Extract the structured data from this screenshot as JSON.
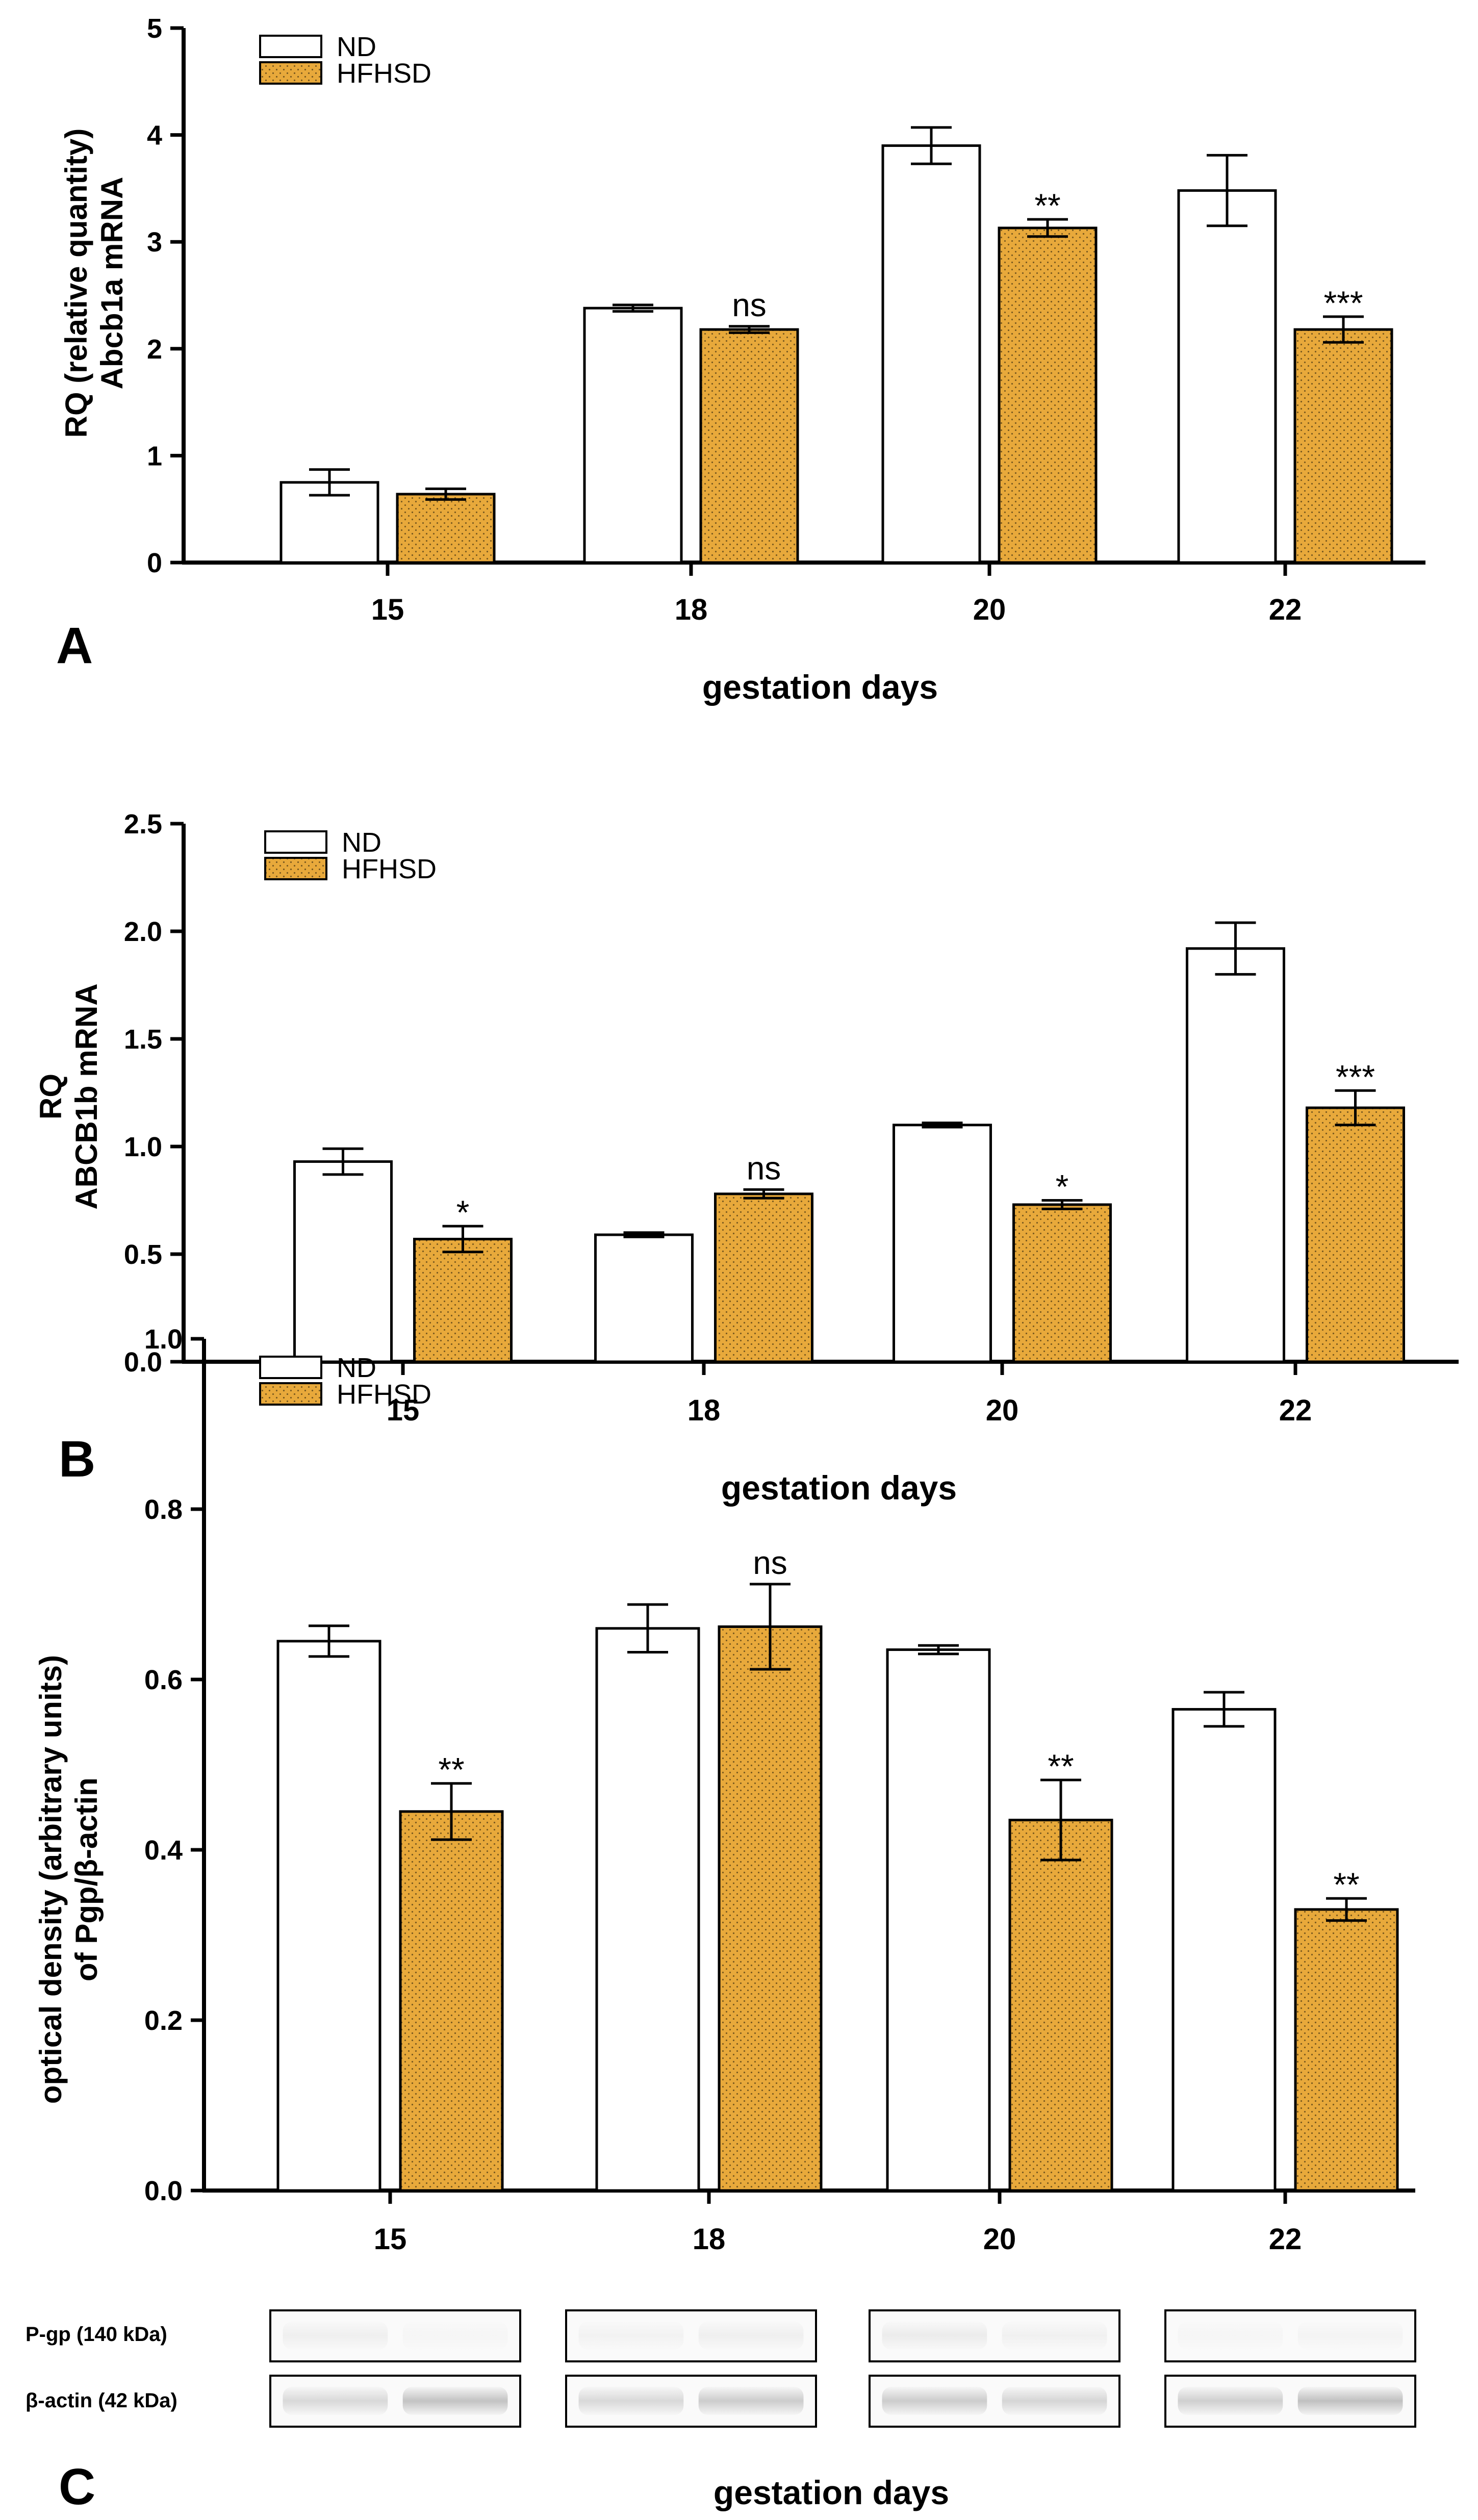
{
  "colors": {
    "nd_fill": "#ffffff",
    "hfhsd_fill": "#e8a93b",
    "hfhsd_dots": "#7a5a1f",
    "axis": "#000000"
  },
  "shared": {
    "xlabel": "gestation days"
  },
  "chart_data": [
    {
      "type": "bar",
      "panel": "A",
      "ylabel_line1": "RQ (relative quantity)",
      "ylabel_line2": "Abcb1a mRNA",
      "xlabel": "gestation days",
      "categories": [
        "15",
        "18",
        "20",
        "22"
      ],
      "ylim": [
        0,
        5
      ],
      "yticks": [
        "0",
        "1",
        "2",
        "3",
        "4",
        "5"
      ],
      "legend": [
        "ND",
        "HFHSD"
      ],
      "series": [
        {
          "name": "ND",
          "values": [
            0.75,
            2.38,
            3.9,
            3.48
          ],
          "errors": [
            0.12,
            0.03,
            0.17,
            0.33
          ]
        },
        {
          "name": "HFHSD",
          "values": [
            0.64,
            2.18,
            3.13,
            2.18
          ],
          "errors": [
            0.05,
            0.03,
            0.08,
            0.12
          ]
        }
      ],
      "annotations": [
        "",
        "ns",
        "**",
        "***"
      ]
    },
    {
      "type": "bar",
      "panel": "B",
      "ylabel_line1": "RQ",
      "ylabel_line2": "ABCB1b mRNA",
      "xlabel": "gestation days",
      "categories": [
        "15",
        "18",
        "20",
        "22"
      ],
      "ylim": [
        0,
        2.5
      ],
      "yticks": [
        "0.0",
        "0.5",
        "1.0",
        "1.5",
        "2.0",
        "2.5"
      ],
      "legend": [
        "ND",
        "HFHSD"
      ],
      "series": [
        {
          "name": "ND",
          "values": [
            0.93,
            0.59,
            1.1,
            1.92
          ],
          "errors": [
            0.06,
            0.01,
            0.01,
            0.12
          ]
        },
        {
          "name": "HFHSD",
          "values": [
            0.57,
            0.78,
            0.73,
            1.18
          ],
          "errors": [
            0.06,
            0.02,
            0.02,
            0.08
          ]
        }
      ],
      "annotations": [
        "*",
        "ns",
        "*",
        "***"
      ]
    },
    {
      "type": "bar",
      "panel": "C",
      "ylabel_line1": "optical density (arbitrary units)",
      "ylabel_line2": "of Pgp/β-actin",
      "xlabel": "gestation days",
      "categories": [
        "15",
        "18",
        "20",
        "22"
      ],
      "ylim": [
        0,
        1.0
      ],
      "yticks": [
        "0.0",
        "0.2",
        "0.4",
        "0.6",
        "0.8",
        "1.0"
      ],
      "legend": [
        "ND",
        "HFHSD"
      ],
      "series": [
        {
          "name": "ND",
          "values": [
            0.645,
            0.66,
            0.635,
            0.565
          ],
          "errors": [
            0.018,
            0.028,
            0.005,
            0.02
          ]
        },
        {
          "name": "HFHSD",
          "values": [
            0.445,
            0.662,
            0.435,
            0.33
          ],
          "errors": [
            0.033,
            0.05,
            0.047,
            0.013
          ]
        }
      ],
      "annotations": [
        "**",
        "ns",
        "**",
        "**"
      ],
      "blot": {
        "rows": [
          "P-gp (140 kDa)",
          "β-actin (42 kDa)"
        ]
      }
    }
  ]
}
